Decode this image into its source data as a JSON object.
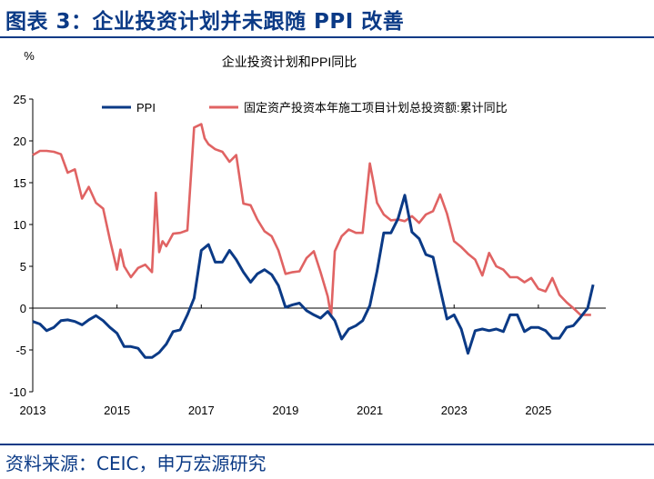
{
  "figure": {
    "title": "图表 3：企业投资计划并未跟随 PPI 改善",
    "source": "资料来源：CEIC，申万宏源研究"
  },
  "chart_data": {
    "type": "line",
    "title": "企业投资计划和PPI同比",
    "ylabel": "%",
    "xlabel": "",
    "ylim": [
      -10,
      25
    ],
    "yticks": [
      "25",
      "20",
      "15",
      "10",
      "5",
      "0",
      "-5",
      "-10"
    ],
    "xticks": [
      "2013",
      "2015",
      "2017",
      "2019",
      "2021",
      "2023",
      "2025"
    ],
    "xlim": [
      2013.0,
      2026.5
    ],
    "grid": false,
    "legend_position": "top",
    "series": [
      {
        "name": "PPI",
        "color": "#0b3a86",
        "x": [
          2013.0,
          2013.17,
          2013.33,
          2013.5,
          2013.67,
          2013.83,
          2014.0,
          2014.17,
          2014.33,
          2014.5,
          2014.67,
          2014.83,
          2015.0,
          2015.17,
          2015.33,
          2015.5,
          2015.67,
          2015.83,
          2016.0,
          2016.17,
          2016.33,
          2016.5,
          2016.67,
          2016.83,
          2017.0,
          2017.17,
          2017.33,
          2017.5,
          2017.67,
          2017.83,
          2018.0,
          2018.17,
          2018.33,
          2018.5,
          2018.67,
          2018.83,
          2019.0,
          2019.17,
          2019.33,
          2019.5,
          2019.67,
          2019.83,
          2020.0,
          2020.17,
          2020.33,
          2020.5,
          2020.67,
          2020.83,
          2021.0,
          2021.17,
          2021.33,
          2021.5,
          2021.67,
          2021.83,
          2022.0,
          2022.17,
          2022.33,
          2022.5,
          2022.67,
          2022.83,
          2023.0,
          2023.17,
          2023.33,
          2023.5,
          2023.67,
          2023.83,
          2024.0,
          2024.17,
          2024.33,
          2024.5,
          2024.67,
          2024.83,
          2025.0,
          2025.17,
          2025.33,
          2025.5,
          2025.67,
          2025.83,
          2026.0,
          2026.17,
          2026.3
        ],
        "values": [
          -1.6,
          -1.9,
          -2.7,
          -2.3,
          -1.5,
          -1.4,
          -1.6,
          -2.0,
          -1.4,
          -0.9,
          -1.5,
          -2.3,
          -3.0,
          -4.6,
          -4.6,
          -4.8,
          -5.9,
          -5.9,
          -5.3,
          -4.3,
          -2.8,
          -2.6,
          -0.8,
          1.2,
          6.9,
          7.6,
          5.5,
          5.5,
          6.9,
          5.8,
          4.3,
          3.1,
          4.1,
          4.6,
          4.0,
          2.7,
          0.1,
          0.4,
          0.6,
          -0.3,
          -0.8,
          -1.2,
          -0.4,
          -1.5,
          -3.7,
          -2.5,
          -2.1,
          -1.5,
          0.3,
          4.4,
          9.0,
          9.0,
          10.7,
          13.5,
          9.1,
          8.3,
          6.4,
          6.1,
          2.3,
          -1.3,
          -0.8,
          -2.5,
          -5.4,
          -2.7,
          -2.5,
          -2.7,
          -2.5,
          -2.8,
          -0.8,
          -0.8,
          -2.8,
          -2.3,
          -2.3,
          -2.7,
          -3.6,
          -3.6,
          -2.3,
          -2.1,
          -1.1,
          0.0,
          2.8
        ]
      },
      {
        "name": "固定资产投资本年施工项目计划总投资额:累计同比",
        "color": "#e06363",
        "x": [
          2013.0,
          2013.17,
          2013.33,
          2013.5,
          2013.67,
          2013.83,
          2014.0,
          2014.17,
          2014.33,
          2014.5,
          2014.67,
          2014.83,
          2015.0,
          2015.08,
          2015.17,
          2015.33,
          2015.5,
          2015.67,
          2015.83,
          2015.92,
          2016.0,
          2016.08,
          2016.17,
          2016.33,
          2016.5,
          2016.67,
          2016.83,
          2017.0,
          2017.08,
          2017.17,
          2017.33,
          2017.5,
          2017.67,
          2017.83,
          2018.0,
          2018.17,
          2018.33,
          2018.5,
          2018.67,
          2018.83,
          2019.0,
          2019.17,
          2019.33,
          2019.5,
          2019.67,
          2019.83,
          2020.0,
          2020.08,
          2020.17,
          2020.33,
          2020.5,
          2020.67,
          2020.83,
          2021.0,
          2021.08,
          2021.17,
          2021.33,
          2021.5,
          2021.67,
          2021.83,
          2022.0,
          2022.17,
          2022.33,
          2022.5,
          2022.67,
          2022.83,
          2023.0,
          2023.17,
          2023.33,
          2023.5,
          2023.67,
          2023.83,
          2024.0,
          2024.17,
          2024.33,
          2024.5,
          2024.67,
          2024.83,
          2025.0,
          2025.17,
          2025.33,
          2025.5,
          2025.67,
          2025.83,
          2026.0,
          2026.17,
          2026.25
        ],
        "values": [
          18.3,
          18.8,
          18.8,
          18.7,
          18.4,
          16.2,
          16.6,
          13.1,
          14.5,
          12.6,
          11.9,
          8.2,
          4.6,
          7.0,
          5.0,
          3.7,
          4.8,
          5.2,
          4.3,
          13.8,
          6.7,
          8.0,
          7.4,
          8.9,
          9.0,
          9.3,
          21.6,
          22.0,
          20.3,
          19.6,
          19.0,
          18.7,
          17.5,
          18.3,
          12.5,
          12.3,
          10.6,
          9.2,
          8.6,
          6.9,
          4.1,
          4.3,
          4.4,
          6.0,
          6.8,
          4.3,
          1.4,
          -1.0,
          6.8,
          8.6,
          9.4,
          9.0,
          9.0,
          17.3,
          15.2,
          12.6,
          11.2,
          10.5,
          10.6,
          10.4,
          11.0,
          10.2,
          11.2,
          11.6,
          13.6,
          11.3,
          8.0,
          7.3,
          6.5,
          5.8,
          3.9,
          6.6,
          5.0,
          4.6,
          3.7,
          3.7,
          3.1,
          3.6,
          2.3,
          2.0,
          3.6,
          1.6,
          0.7,
          0.0,
          -0.8,
          -0.8,
          -0.8
        ]
      }
    ]
  }
}
